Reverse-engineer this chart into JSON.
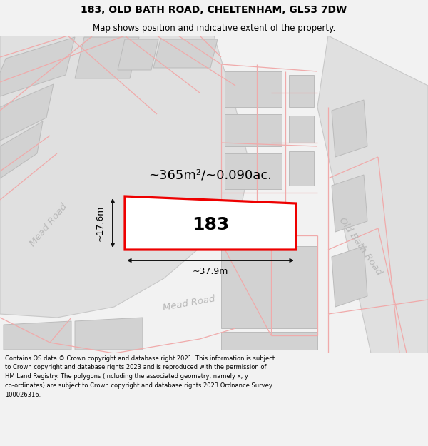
{
  "title_line1": "183, OLD BATH ROAD, CHELTENHAM, GL53 7DW",
  "title_line2": "Map shows position and indicative extent of the property.",
  "footer_text": "Contains OS data © Crown copyright and database right 2021. This information is subject\nto Crown copyright and database rights 2023 and is reproduced with the permission of\nHM Land Registry. The polygons (including the associated geometry, namely x, y\nco-ordinates) are subject to Crown copyright and database rights 2023 Ordnance Survey\n100026316.",
  "property_label": "183",
  "area_label": "~365m²/~0.090ac.",
  "width_label": "~37.9m",
  "height_label": "~17.6m",
  "road_label_mead1": "Mead Road",
  "road_label_mead2": "Mead Road",
  "road_label_old_bath": "Old Bath Road",
  "bg_color": "#f2f2f2",
  "map_bg": "#ffffff",
  "road_fill": "#e0e0e0",
  "road_stroke": "#c8c8c8",
  "property_stroke": "#ee0000",
  "property_fill": "#ffffff",
  "building_fill": "#d2d2d2",
  "building_stroke": "#bbbbbb",
  "pink_color": "#f0aaaa",
  "dim_color": "#111111",
  "road_text_color": "#b8b8b8",
  "title_fontsize": 10,
  "subtitle_fontsize": 8.5,
  "footer_fontsize": 6.0,
  "label_fontsize": 12,
  "area_fontsize": 13,
  "property_num_fontsize": 18,
  "road_fontsize": 9.5
}
